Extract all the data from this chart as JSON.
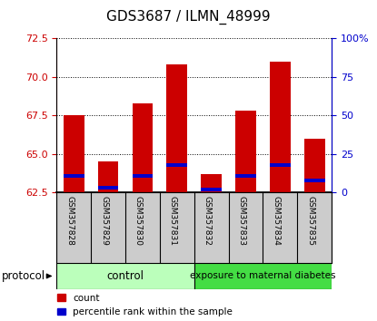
{
  "title": "GDS3687 / ILMN_48999",
  "samples": [
    "GSM357828",
    "GSM357829",
    "GSM357830",
    "GSM357831",
    "GSM357832",
    "GSM357833",
    "GSM357834",
    "GSM357835"
  ],
  "count_values": [
    67.5,
    64.5,
    68.3,
    70.8,
    63.7,
    67.8,
    71.0,
    66.0
  ],
  "percentile_values": [
    63.6,
    62.8,
    63.6,
    64.3,
    62.7,
    63.6,
    64.3,
    63.3
  ],
  "ymin": 62.5,
  "ymax": 72.5,
  "yticks": [
    62.5,
    65.0,
    67.5,
    70.0,
    72.5
  ],
  "right_yticks": [
    0,
    25,
    50,
    75,
    100
  ],
  "right_ytick_labels": [
    "0",
    "25",
    "50",
    "75",
    "100%"
  ],
  "bar_color_red": "#cc0000",
  "bar_color_blue": "#0000cc",
  "control_color": "#bbffbb",
  "diabetes_color": "#44dd44",
  "group_label_bg": "#cccccc",
  "control_samples": 4,
  "diabetes_samples": 4,
  "control_label": "control",
  "diabetes_label": "exposure to maternal diabetes",
  "protocol_label": "protocol",
  "legend_count": "count",
  "legend_percentile": "percentile rank within the sample",
  "bar_width": 0.6,
  "background_color": "#ffffff",
  "tick_label_color_left": "#cc0000",
  "tick_label_color_right": "#0000cc",
  "title_fontsize": 11
}
